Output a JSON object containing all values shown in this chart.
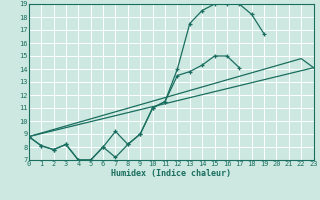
{
  "xlabel": "Humidex (Indice chaleur)",
  "bg_color": "#cce8e0",
  "grid_color": "#ffffff",
  "line_color": "#1a6e60",
  "xmin": 0,
  "xmax": 23,
  "ymin": 7,
  "ymax": 19,
  "yticks": [
    7,
    8,
    9,
    10,
    11,
    12,
    13,
    14,
    15,
    16,
    17,
    18,
    19
  ],
  "xticks": [
    0,
    1,
    2,
    3,
    4,
    5,
    6,
    7,
    8,
    9,
    10,
    11,
    12,
    13,
    14,
    15,
    16,
    17,
    18,
    19,
    20,
    21,
    22,
    23
  ],
  "line1_x": [
    0,
    1,
    2,
    3,
    4,
    5,
    6,
    7,
    8,
    9,
    10,
    11,
    12,
    13,
    14,
    15,
    16,
    17
  ],
  "line1_y": [
    8.8,
    8.1,
    7.8,
    8.2,
    7.0,
    7.0,
    8.0,
    7.2,
    8.2,
    9.0,
    11.0,
    11.5,
    13.5,
    13.8,
    14.3,
    15.0,
    15.0,
    14.1
  ],
  "line2_x": [
    0,
    1,
    2,
    3,
    4,
    5,
    6,
    7,
    8,
    9,
    10,
    11,
    12,
    13,
    14,
    15,
    16,
    17,
    18,
    19
  ],
  "line2_y": [
    8.8,
    8.1,
    7.8,
    8.2,
    7.0,
    7.0,
    8.0,
    9.2,
    8.2,
    9.0,
    11.0,
    11.5,
    14.0,
    17.5,
    18.5,
    19.0,
    19.0,
    19.0,
    18.2,
    16.7
  ],
  "line3_x": [
    0,
    22,
    23
  ],
  "line3_y": [
    8.8,
    14.8,
    14.1
  ],
  "line4_x": [
    0,
    23
  ],
  "line4_y": [
    8.8,
    14.1
  ]
}
